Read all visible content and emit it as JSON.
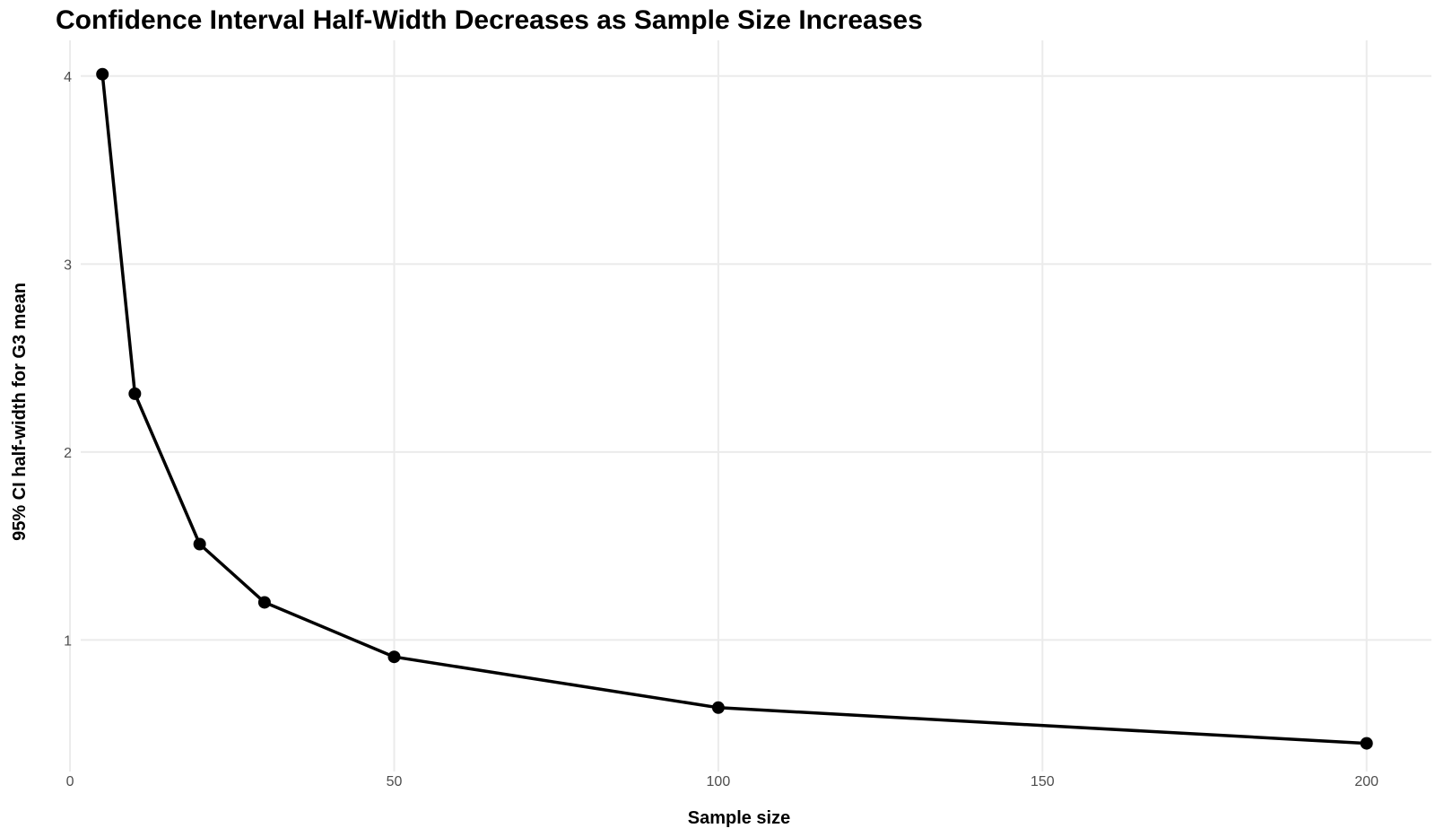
{
  "chart_data": {
    "type": "line",
    "title": "Confidence Interval Half-Width Decreases as Sample Size Increases",
    "xlabel": "Sample size",
    "ylabel": "95% CI half-width for G3 mean",
    "xlim": [
      -2.5,
      210
    ],
    "ylim": [
      0.3,
      4.19
    ],
    "x_ticks": [
      0,
      50,
      100,
      150,
      200
    ],
    "y_ticks": [
      1,
      2,
      3,
      4
    ],
    "grid": true,
    "legend": "none",
    "series": [
      {
        "x": [
          5,
          10,
          20,
          30,
          50,
          100,
          200
        ],
        "values": [
          4.01,
          2.31,
          1.51,
          1.2,
          0.91,
          0.64,
          0.45
        ]
      }
    ],
    "colors": {
      "line": "#000000",
      "point": "#000000",
      "grid": "#ebebeb",
      "tick_text": "#4d4d4d"
    }
  }
}
